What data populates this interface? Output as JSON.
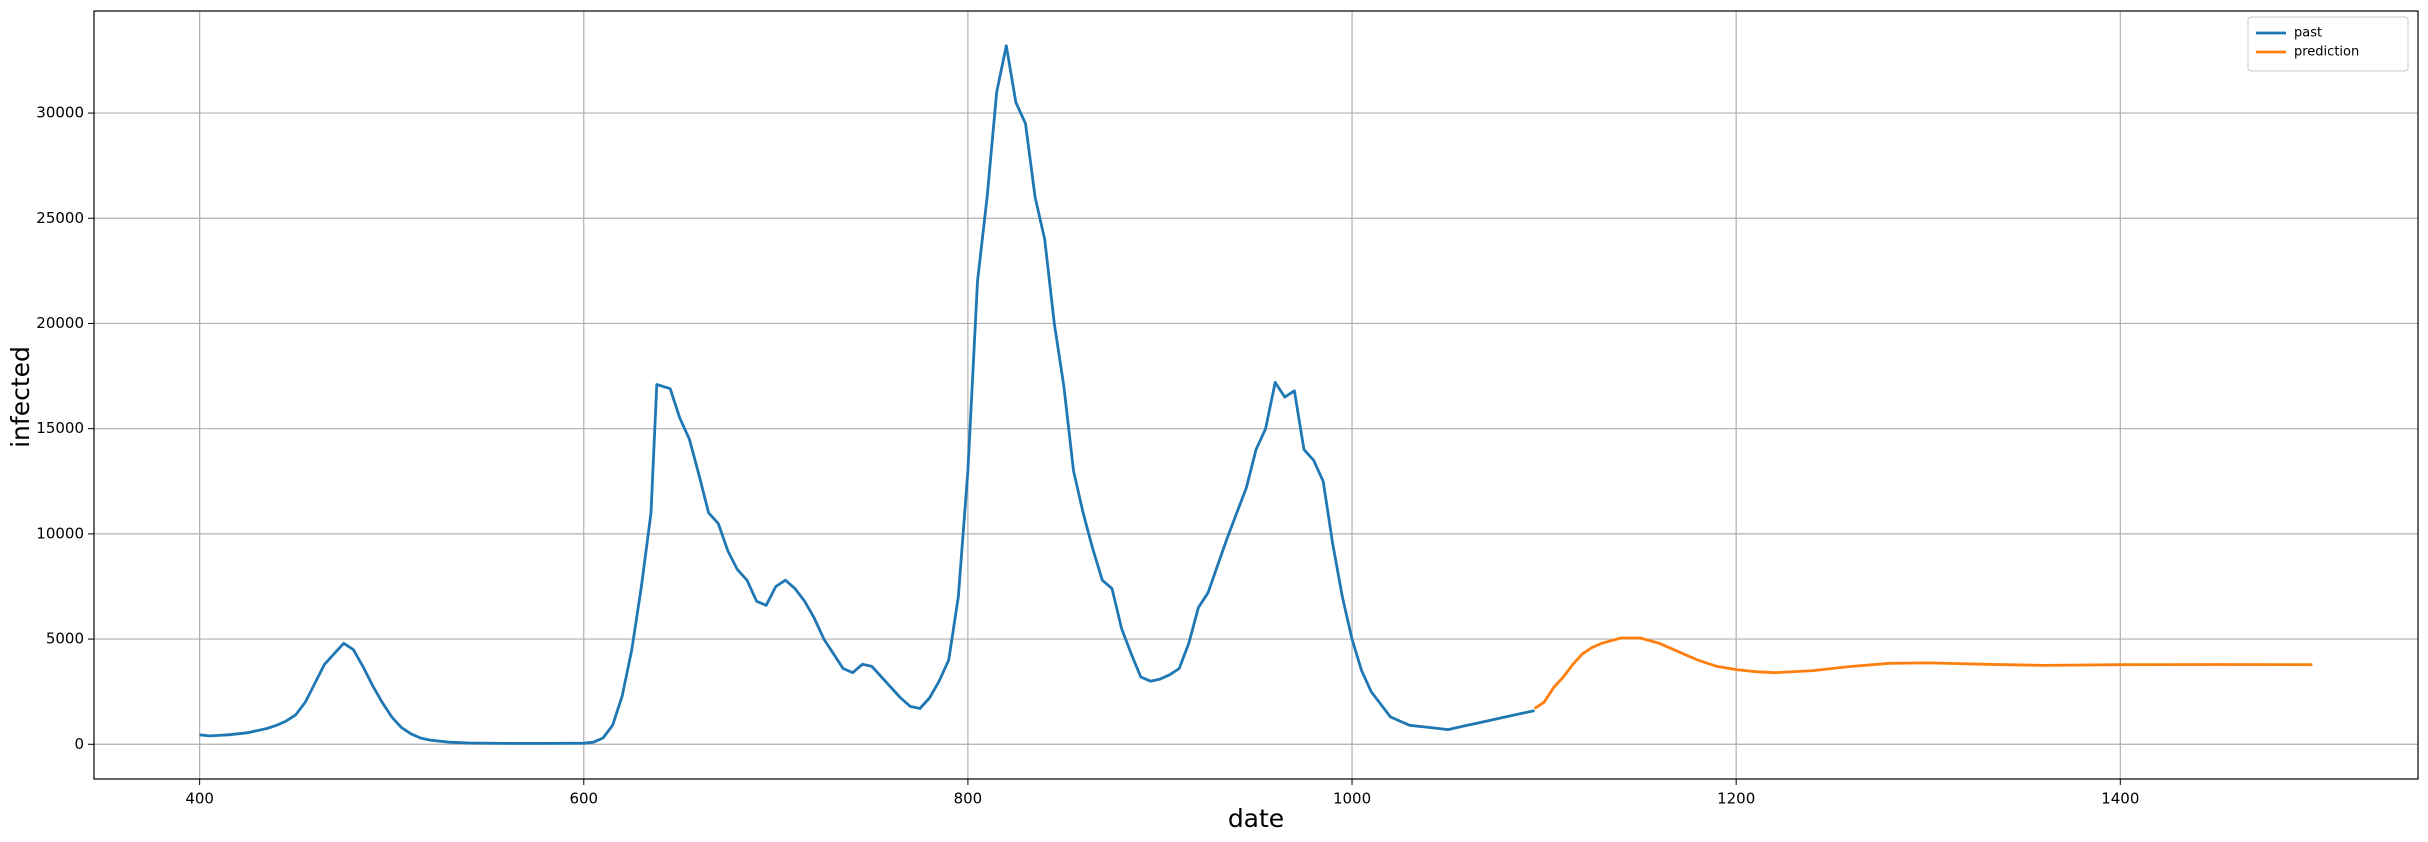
{
  "chart_data": {
    "type": "line",
    "xlabel": "date",
    "ylabel": "infected",
    "xlim": [
      345,
      1555
    ],
    "ylim": [
      -1650,
      34850
    ],
    "xticks": [
      400,
      600,
      800,
      1000,
      1200,
      1400
    ],
    "yticks": [
      0,
      5000,
      10000,
      15000,
      20000,
      25000,
      30000
    ],
    "grid": true,
    "legend": "upper right",
    "series": [
      {
        "name": "past",
        "color": "#1f77b4",
        "x": [
          400,
          405,
          410,
          415,
          420,
          425,
          430,
          435,
          440,
          445,
          450,
          455,
          460,
          465,
          470,
          475,
          480,
          485,
          490,
          495,
          500,
          505,
          510,
          515,
          520,
          530,
          540,
          560,
          580,
          600,
          605,
          610,
          615,
          620,
          625,
          630,
          635,
          638,
          645,
          650,
          655,
          660,
          665,
          670,
          675,
          680,
          685,
          690,
          695,
          700,
          705,
          710,
          715,
          720,
          725,
          730,
          735,
          740,
          745,
          750,
          755,
          760,
          765,
          770,
          775,
          780,
          785,
          790,
          795,
          800,
          805,
          810,
          815,
          820,
          825,
          830,
          835,
          840,
          845,
          850,
          855,
          860,
          865,
          870,
          875,
          880,
          885,
          890,
          895,
          900,
          905,
          910,
          915,
          920,
          925,
          930,
          935,
          940,
          945,
          950,
          955,
          960,
          965,
          970,
          975,
          980,
          985,
          990,
          995,
          1000,
          1005,
          1010,
          1015,
          1020,
          1025,
          1030,
          1035,
          1040,
          1045,
          1050,
          1055,
          1060,
          1065,
          1070,
          1075,
          1080,
          1085,
          1090,
          1095
        ],
        "values": [
          450,
          400,
          420,
          450,
          500,
          550,
          650,
          750,
          900,
          1100,
          1400,
          2000,
          2900,
          3800,
          4300,
          4800,
          4500,
          3700,
          2800,
          2000,
          1300,
          800,
          500,
          300,
          200,
          100,
          60,
          40,
          40,
          50,
          100,
          300,
          900,
          2300,
          4500,
          7500,
          11000,
          17100,
          16900,
          15500,
          14500,
          12800,
          11000,
          10500,
          9200,
          8300,
          7800,
          6800,
          6600,
          7500,
          7800,
          7400,
          6800,
          6000,
          5000,
          4300,
          3600,
          3400,
          3800,
          3700,
          3200,
          2700,
          2200,
          1800,
          1700,
          2200,
          3000,
          4000,
          7000,
          13000,
          22000,
          26000,
          31000,
          33200,
          30500,
          29500,
          26000,
          24000,
          20000,
          17000,
          13000,
          11000,
          9300,
          7800,
          7400,
          5500,
          4300,
          3200,
          3000,
          3100,
          3300,
          3600,
          4800,
          6500,
          7200,
          8500,
          9800,
          11000,
          12200,
          14000,
          15000,
          17200,
          16500,
          16800,
          14000,
          13500,
          12500,
          9500,
          7000,
          5000,
          3500,
          2500,
          1900,
          1300,
          1100,
          900,
          850,
          800,
          750,
          700,
          800,
          900,
          1000,
          1100,
          1200,
          1300,
          1400,
          1500,
          1600
        ]
      },
      {
        "name": "prediction",
        "color": "#ff7f0e",
        "x": [
          1095,
          1100,
          1105,
          1110,
          1115,
          1120,
          1125,
          1130,
          1140,
          1150,
          1160,
          1170,
          1180,
          1190,
          1200,
          1210,
          1220,
          1240,
          1260,
          1280,
          1300,
          1330,
          1360,
          1400,
          1450,
          1500
        ],
        "values": [
          1700,
          2000,
          2700,
          3200,
          3800,
          4300,
          4600,
          4800,
          5050,
          5050,
          4800,
          4400,
          4000,
          3700,
          3550,
          3450,
          3400,
          3500,
          3700,
          3850,
          3870,
          3800,
          3750,
          3780,
          3790,
          3780
        ]
      }
    ]
  }
}
